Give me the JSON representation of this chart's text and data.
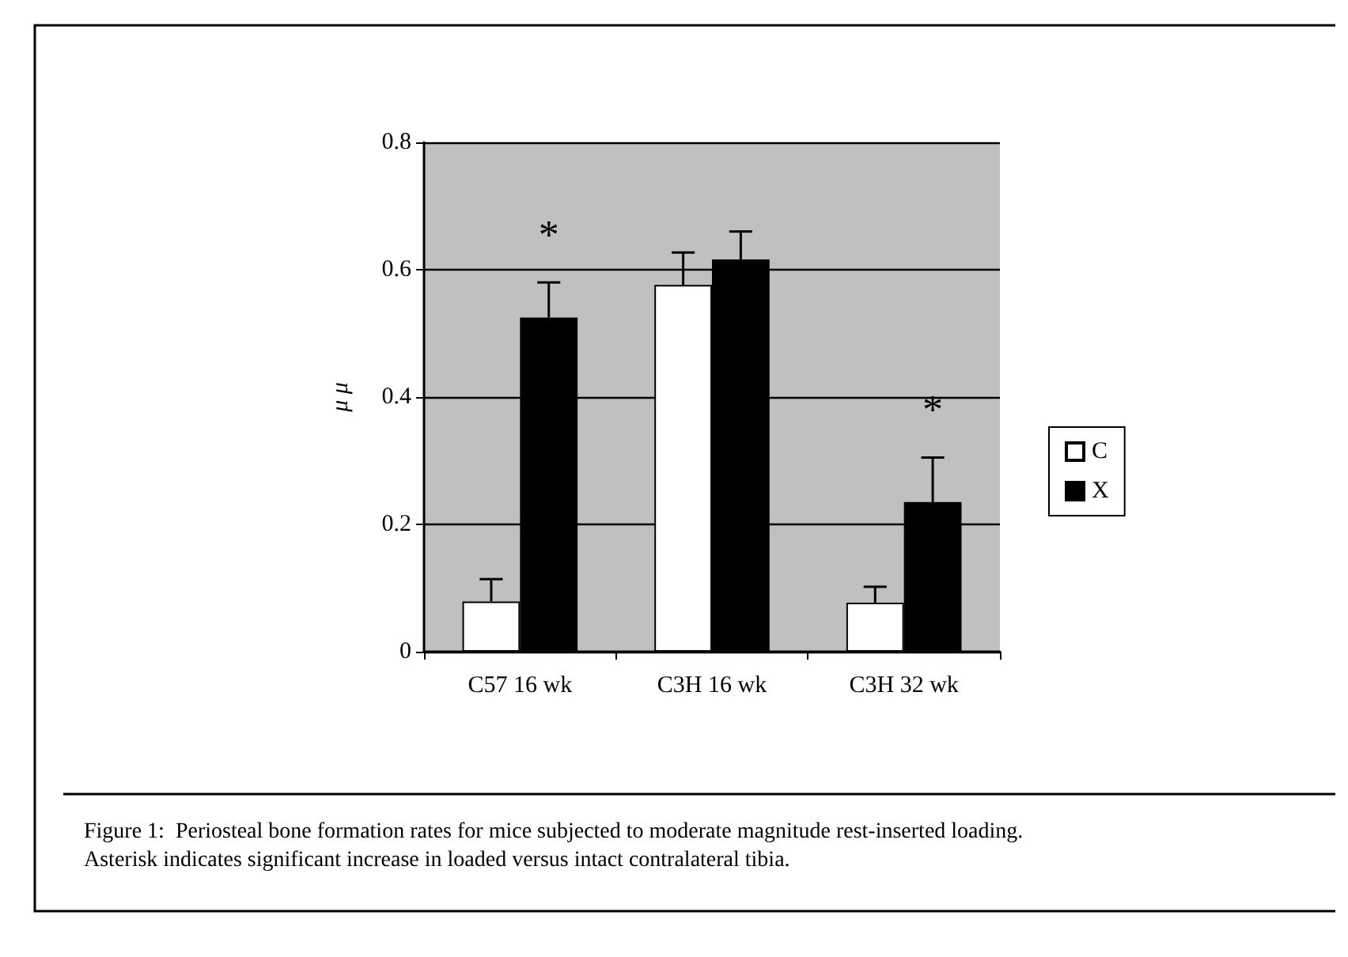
{
  "chart_data": {
    "type": "bar",
    "ylabel": "μ μ",
    "categories": [
      "C57 16 wk",
      "C3H 16 wk",
      "C3H 32 wk"
    ],
    "series": [
      {
        "name": "C",
        "color": "#ffffff",
        "values": [
          0.079,
          0.576,
          0.077
        ],
        "errors": [
          0.035,
          0.051,
          0.025
        ]
      },
      {
        "name": "X",
        "color": "#000000",
        "values": [
          0.525,
          0.616,
          0.235
        ],
        "errors": [
          0.055,
          0.044,
          0.07
        ]
      }
    ],
    "ylim": [
      0,
      0.8
    ],
    "yticks": [
      0,
      0.2,
      0.4,
      0.6,
      0.8
    ],
    "grid": "y",
    "legend": "right",
    "annotations": [
      {
        "text": "*",
        "x": "C57 16 wk",
        "y": 0.525
      },
      {
        "text": "*",
        "x": "C3H 32 wk",
        "y": 0.235
      },
      "Figure 1:  Periosteal bone formation rates for mice subjected to moderate magnitude rest-inserted loading.",
      "Asterisk indicates significant increase in loaded versus intact contralateral tibia."
    ]
  }
}
